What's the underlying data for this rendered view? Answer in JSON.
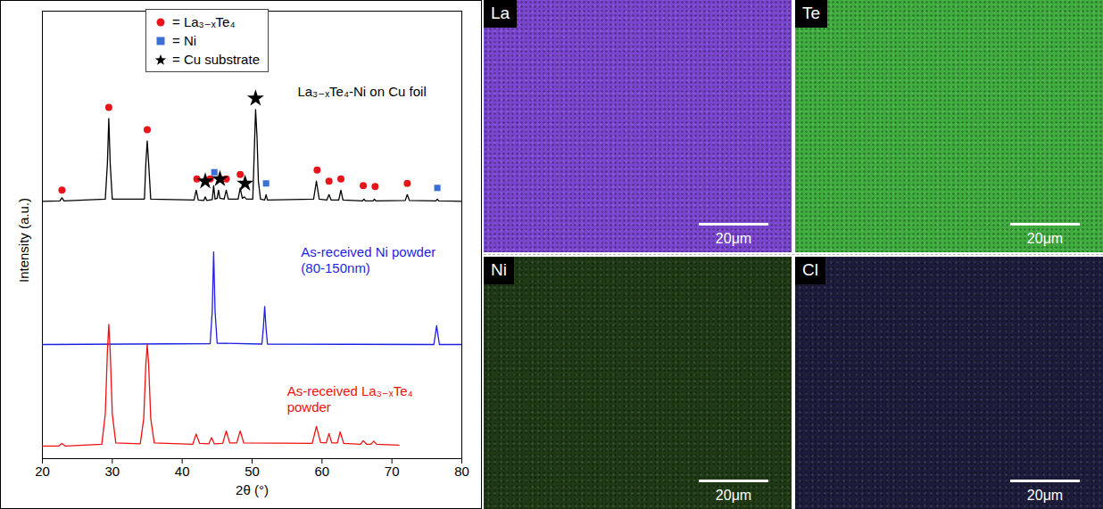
{
  "chart_data": {
    "type": "line",
    "x_label": "2θ (°)",
    "y_label": "Intensity (a.u.)",
    "xlim": [
      20,
      80
    ],
    "xticks": [
      20,
      30,
      40,
      50,
      60,
      70,
      80
    ],
    "ylim": [
      0,
      100
    ],
    "yticks": [],
    "tick_labels": "x",
    "legend": "top",
    "series": [
      {
        "type": "line",
        "color": "#000000",
        "x": [
          20,
          22.5,
          22.8,
          23.1,
          29.0,
          29.3,
          29.5,
          29.7,
          30.0,
          34.6,
          34.8,
          35.0,
          35.2,
          35.5,
          41.7,
          42.0,
          42.3,
          43.1,
          43.3,
          43.5,
          44.3,
          44.5,
          44.7,
          45.0,
          45.2,
          45.4,
          46.0,
          46.3,
          46.6,
          48.0,
          48.3,
          48.6,
          48.9,
          49.2,
          50.1,
          50.3,
          50.5,
          50.7,
          50.9,
          51.2,
          51.8,
          52.0,
          52.2,
          58.8,
          59.2,
          59.6,
          60.7,
          61.0,
          61.3,
          62.4,
          62.7,
          63.0,
          65.8,
          66.0,
          66.2,
          67.3,
          67.5,
          67.7,
          71.9,
          72.2,
          72.5,
          76.3,
          76.5,
          76.7,
          80
        ],
        "values": [
          57.5,
          57.6,
          58.3,
          57.6,
          58,
          66,
          76,
          66,
          58,
          58,
          66,
          71,
          66,
          58,
          57.8,
          60,
          57.8,
          57.7,
          58.5,
          57.7,
          57.9,
          61,
          58,
          58.2,
          60,
          58.2,
          58,
          60,
          58,
          58,
          60.5,
          58.2,
          58.5,
          58,
          58,
          68,
          78,
          72,
          62,
          58,
          57.8,
          59,
          57.8,
          58,
          62,
          58,
          57.8,
          59,
          57.8,
          57.8,
          60,
          57.8,
          57.6,
          58,
          57.6,
          57.6,
          58,
          57.6,
          57.7,
          59,
          57.7,
          57.6,
          58,
          57.6,
          57.5
        ]
      },
      {
        "type": "line",
        "color": "#1f1fe0",
        "x": [
          20,
          44.0,
          44.3,
          44.5,
          44.7,
          45.0,
          51.4,
          51.6,
          51.8,
          52.0,
          52.2,
          76.0,
          76.2,
          76.4,
          76.6,
          76.8,
          80
        ],
        "values": [
          25.5,
          25.7,
          33,
          46.2,
          33,
          25.8,
          25.6,
          29,
          34,
          29,
          25.6,
          25.5,
          27.5,
          29.7,
          27.5,
          25.5,
          25.5
        ]
      },
      {
        "type": "line",
        "color": "#ee1111",
        "x": [
          20,
          22.3,
          22.8,
          23.3,
          28.5,
          29.0,
          29.3,
          29.5,
          29.7,
          30.0,
          30.5,
          34.0,
          34.5,
          34.8,
          35.0,
          35.2,
          35.5,
          36.0,
          41.5,
          42.0,
          42.5,
          43.8,
          44.2,
          44.6,
          45.8,
          46.3,
          46.8,
          47.8,
          48.3,
          48.8,
          58.6,
          59.2,
          59.8,
          60.6,
          61.0,
          61.4,
          62.2,
          62.6,
          63.1,
          65.5,
          65.9,
          66.4,
          67.0,
          67.4,
          67.8,
          71
        ],
        "values": [
          2.8,
          2.8,
          3.4,
          2.8,
          3.2,
          10,
          24,
          30,
          24,
          10,
          3.5,
          3.3,
          9,
          21,
          25.5,
          21,
          9,
          3.5,
          3.2,
          5.5,
          3.4,
          3.3,
          4.7,
          3.3,
          3.4,
          6.2,
          3.5,
          3.5,
          6.2,
          3.5,
          3.4,
          7.2,
          3.6,
          3.5,
          5.6,
          3.5,
          3.5,
          6.0,
          3.4,
          3.2,
          4.0,
          3.2,
          3.2,
          3.9,
          3.2,
          3.0
        ]
      },
      {
        "name": "= La₃₋ₓTe₄",
        "type": "scatter",
        "marker": "circle",
        "color": "#e8141c",
        "x": [
          22.8,
          29.5,
          35.0,
          42.1,
          44.0,
          46.3,
          48.3,
          59.3,
          61.0,
          62.7,
          65.9,
          67.6,
          72.2
        ],
        "values": [
          60,
          78.5,
          73.5,
          62.5,
          62.5,
          62.5,
          63.5,
          64.5,
          62,
          62.5,
          61,
          60.8,
          61.5
        ]
      },
      {
        "name": "= Ni",
        "type": "scatter",
        "marker": "square",
        "color": "#3b6fd4",
        "x": [
          44.6,
          52.0,
          76.5
        ],
        "values": [
          64,
          61.5,
          60.5
        ]
      },
      {
        "name": "= Cu substrate",
        "type": "scatter",
        "marker": "star",
        "color": "#000000",
        "x": [
          43.3,
          45.4,
          49.0,
          50.5
        ],
        "values": [
          62,
          62.5,
          61.5,
          80.5
        ]
      }
    ],
    "annotations": [
      {
        "text": "La₃₋ₓTe₄-Ni on Cu foil",
        "x": 56.5,
        "y": 82,
        "color": "#000000"
      },
      {
        "text": "As-received Ni powder",
        "x": 57,
        "y": 46,
        "color": "#1f1fe0"
      },
      {
        "text": "(80-150nm)",
        "x": 57,
        "y": 42.5,
        "color": "#1f1fe0"
      },
      {
        "text": "As-received La₃₋ₓTe₄",
        "x": 55,
        "y": 15,
        "color": "#ee1111"
      },
      {
        "text": "powder",
        "x": 55,
        "y": 11.5,
        "color": "#ee1111"
      }
    ]
  },
  "maps": {
    "panels": [
      {
        "label": "La",
        "color": "#7a45d0",
        "scale_bar": "20μm"
      },
      {
        "label": "Te",
        "color": "#3fae3f",
        "scale_bar": "20μm"
      },
      {
        "label": "Ni",
        "color": "#1f3a14",
        "scale_bar": "20μm"
      },
      {
        "label": "Cl",
        "color": "#1c1c3c",
        "scale_bar": "20μm"
      }
    ]
  }
}
